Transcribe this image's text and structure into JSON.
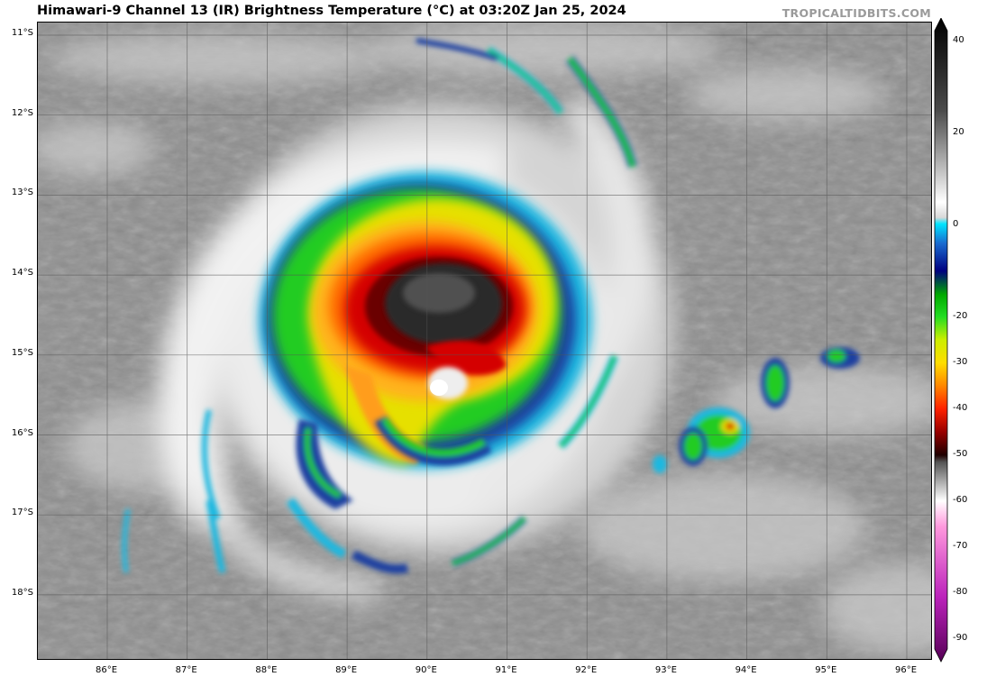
{
  "title": "Himawari-9 Channel 13 (IR) Brightness Temperature (°C) at 03:20Z Jan 25, 2024",
  "credit": "TROPICALTIDBITS.COM",
  "latitudes": [
    "11°S",
    "12°S",
    "13°S",
    "14°S",
    "15°S",
    "16°S",
    "17°S",
    "18°S"
  ],
  "longitudes": [
    "86°E",
    "87°E",
    "88°E",
    "89°E",
    "90°E",
    "91°E",
    "92°E",
    "93°E",
    "94°E",
    "95°E",
    "96°E"
  ],
  "colorbar": {
    "ticks": [
      "40",
      "20",
      "0",
      "-20",
      "-30",
      "-40",
      "-50",
      "-60",
      "-70",
      "-80",
      "-90"
    ],
    "range": [
      -95,
      45
    ]
  },
  "colors": {
    "background_gray": "#8c8c8c",
    "cold_top": "#2b2b2b",
    "red": "#cc0000",
    "orange": "#ff8c1a",
    "yellow": "#ffd700",
    "green": "#22cc22",
    "blue": "#1a3fa0",
    "cyan": "#00ccee",
    "magenta": "#cc22cc"
  }
}
